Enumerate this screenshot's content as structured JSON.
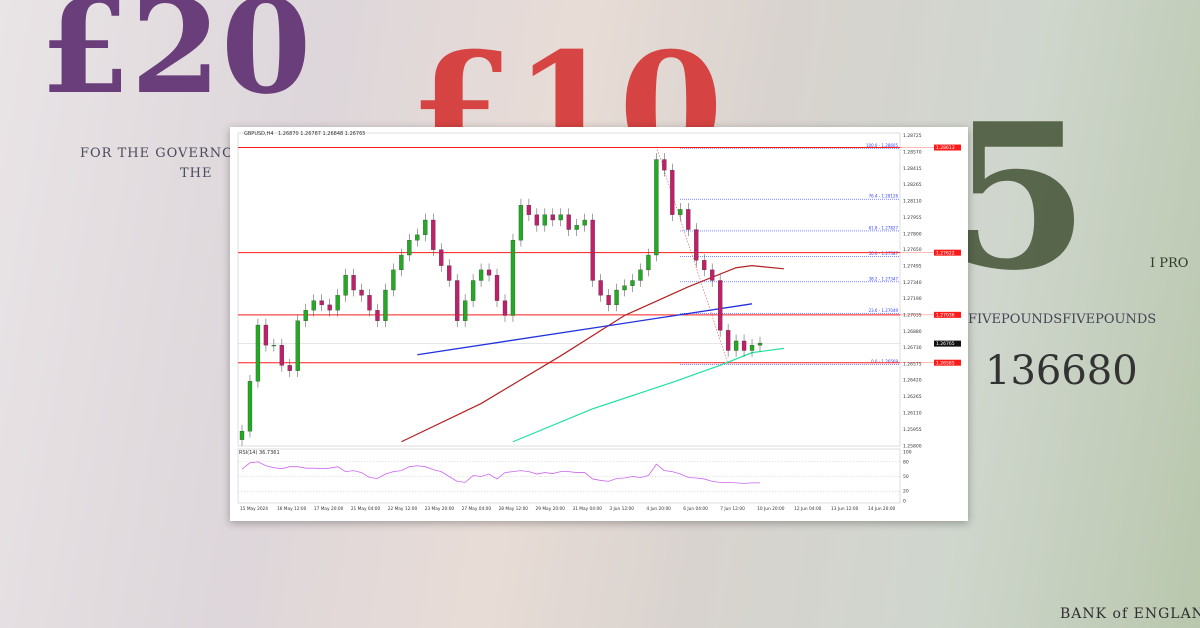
{
  "background": {
    "note_lettering": [
      "£20",
      "FOR THE GOVERNOR",
      "THE",
      "£10",
      "5",
      "FIVEPOUNDSFIVEPOUNDS",
      "136680",
      "I PRO",
      "BANK of ENGLAND"
    ]
  },
  "header": {
    "symbol": "GBPUSD,H4",
    "ohlc": "1.26870 1.26787 1.26848 1.26765"
  },
  "rsi": {
    "label": "RSI(14) 36.7361",
    "ticks": [
      100,
      80,
      50,
      20,
      0
    ]
  },
  "chart_data": {
    "type": "candlestick",
    "title": "GBPUSD,H4",
    "ylim": [
      1.258,
      1.2875
    ],
    "price_ticks": [
      1.28725,
      1.2857,
      1.28415,
      1.28265,
      1.2811,
      1.27955,
      1.278,
      1.2765,
      1.27495,
      1.2734,
      1.2719,
      1.27035,
      1.2688,
      1.2673,
      1.26575,
      1.2642,
      1.26265,
      1.2611,
      1.25955,
      1.258
    ],
    "x_ticks": [
      "15 May 2024",
      "16 May 12:00",
      "17 May 20:00",
      "21 May 04:00",
      "22 May 12:00",
      "23 May 20:00",
      "27 May 04:00",
      "28 May 12:00",
      "29 May 20:00",
      "31 May 04:00",
      "3 Jun 12:00",
      "4 Jun 20:00",
      "6 Jun 04:00",
      "7 Jun 12:00",
      "10 Jun 20:00",
      "12 Jun 04:00",
      "13 Jun 12:00",
      "14 Jun 20:00"
    ],
    "closes": [
      1.2594,
      1.2641,
      1.2694,
      1.2675,
      1.2675,
      1.2656,
      1.2651,
      1.2698,
      1.2708,
      1.2717,
      1.2713,
      1.2708,
      1.2722,
      1.2741,
      1.2727,
      1.2722,
      1.2708,
      1.2698,
      1.2727,
      1.2746,
      1.276,
      1.2774,
      1.2779,
      1.2793,
      1.2765,
      1.275,
      1.2736,
      1.2698,
      1.2717,
      1.2736,
      1.2746,
      1.2741,
      1.2717,
      1.2703,
      1.2774,
      1.2807,
      1.2798,
      1.2788,
      1.2798,
      1.2793,
      1.2798,
      1.2784,
      1.2788,
      1.2793,
      1.2736,
      1.2722,
      1.2713,
      1.2727,
      1.2731,
      1.2736,
      1.2746,
      1.276,
      1.285,
      1.284,
      1.2798,
      1.2803,
      1.2784,
      1.2755,
      1.2746,
      1.2736,
      1.2689,
      1.267,
      1.2679,
      1.267,
      1.2675,
      1.2677
    ],
    "horizontal_levels": [
      {
        "value": 1.28613,
        "label": "1.28613",
        "color": "#ff1a1a"
      },
      {
        "value": 1.27622,
        "label": "1.27622",
        "color": "#ff1a1a"
      },
      {
        "value": 1.27036,
        "label": "1.27036",
        "color": "#ff1a1a"
      },
      {
        "value": 1.26585,
        "label": "1.26585",
        "color": "#ff1a1a"
      }
    ],
    "current_price": {
      "value": 1.26765,
      "label": "1.26765"
    },
    "fibonacci": [
      {
        "level": "100.0",
        "value": 1.28605
      },
      {
        "level": "76.4",
        "value": 1.28126
      },
      {
        "level": "61.8",
        "value": 1.27827
      },
      {
        "level": "50.0",
        "value": 1.27587
      },
      {
        "level": "38.2",
        "value": 1.27347
      },
      {
        "level": "23.6",
        "value": 1.27049
      },
      {
        "level": "0.0",
        "value": 1.26569
      }
    ],
    "trendline": {
      "from": [
        22,
        1.2666
      ],
      "to": [
        64,
        1.2714
      ],
      "color": "#2233dd"
    },
    "ma_slow": {
      "color": "#b22222",
      "points": [
        [
          20,
          1.2584
        ],
        [
          30,
          1.262
        ],
        [
          40,
          1.2665
        ],
        [
          48,
          1.2703
        ],
        [
          56,
          1.273
        ],
        [
          62,
          1.2748
        ],
        [
          64,
          1.275
        ],
        [
          68,
          1.2747
        ]
      ]
    },
    "ma_fast": {
      "color": "#22e0a0",
      "points": [
        [
          34,
          1.2584
        ],
        [
          44,
          1.2615
        ],
        [
          54,
          1.264
        ],
        [
          60,
          1.2656
        ],
        [
          64,
          1.2668
        ],
        [
          68,
          1.2672
        ]
      ]
    },
    "rsi_values": [
      65,
      78,
      80,
      72,
      68,
      66,
      70,
      70,
      67,
      67,
      66,
      67,
      70,
      60,
      62,
      58,
      48,
      46,
      55,
      60,
      62,
      70,
      72,
      70,
      64,
      60,
      50,
      40,
      38,
      52,
      50,
      55,
      45,
      58,
      60,
      62,
      60,
      55,
      58,
      56,
      60,
      60,
      58,
      58,
      45,
      42,
      40,
      46,
      47,
      50,
      48,
      52,
      75,
      62,
      60,
      55,
      48,
      47,
      45,
      40,
      38,
      38,
      37,
      36,
      37,
      37
    ],
    "colors": {
      "bull": "#22aa22",
      "bear": "#c01f6a",
      "rsi": "#cc66ee",
      "fib": "#3344ff"
    }
  }
}
